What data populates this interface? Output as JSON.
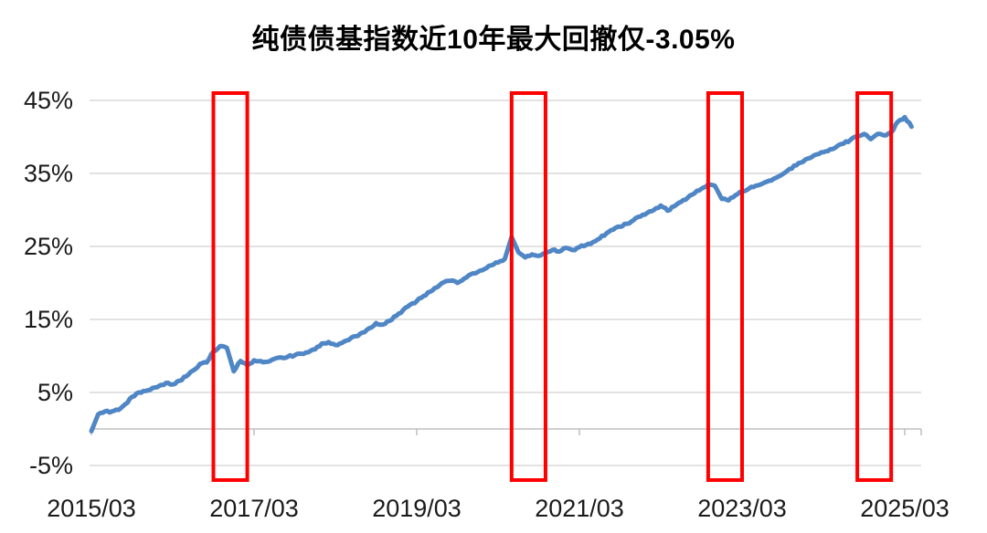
{
  "chart_data": {
    "type": "line",
    "title": "纯债债基指数近10年最大回撤仅-3.05%",
    "xlabel": "",
    "ylabel": "",
    "ylim": [
      -5,
      45
    ],
    "y_tick_values": [
      45,
      35,
      25,
      15,
      5,
      -5
    ],
    "y_tick_labels": [
      "45%",
      "35%",
      "25%",
      "15%",
      "5%",
      "-5%"
    ],
    "x_tick_labels": [
      "2015/03",
      "2017/03",
      "2019/03",
      "2021/03",
      "2023/03",
      "2025/03"
    ],
    "grid": "horizontal",
    "legend": "none",
    "zero_axis_value": 0,
    "series": [
      {
        "name": "pure-bond-fund-index-cumulative-return",
        "dates": [
          "2015/03",
          "2015/04",
          "2015/05",
          "2015/06",
          "2015/07",
          "2015/08",
          "2015/09",
          "2015/10",
          "2015/11",
          "2015/12",
          "2016/01",
          "2016/02",
          "2016/03",
          "2016/04",
          "2016/05",
          "2016/06",
          "2016/07",
          "2016/08",
          "2016/09",
          "2016/10",
          "2016/11",
          "2016/12",
          "2017/01",
          "2017/02",
          "2017/03",
          "2017/04",
          "2017/05",
          "2017/06",
          "2017/07",
          "2017/08",
          "2017/09",
          "2017/10",
          "2017/11",
          "2017/12",
          "2018/01",
          "2018/02",
          "2018/03",
          "2018/04",
          "2018/05",
          "2018/06",
          "2018/07",
          "2018/08",
          "2018/09",
          "2018/10",
          "2018/11",
          "2018/12",
          "2019/01",
          "2019/02",
          "2019/03",
          "2019/04",
          "2019/05",
          "2019/06",
          "2019/07",
          "2019/08",
          "2019/09",
          "2019/10",
          "2019/11",
          "2019/12",
          "2020/01",
          "2020/02",
          "2020/03",
          "2020/04",
          "2020/05",
          "2020/06",
          "2020/07",
          "2020/08",
          "2020/09",
          "2020/10",
          "2020/11",
          "2020/12",
          "2021/01",
          "2021/02",
          "2021/03",
          "2021/04",
          "2021/05",
          "2021/06",
          "2021/07",
          "2021/08",
          "2021/09",
          "2021/10",
          "2021/11",
          "2021/12",
          "2022/01",
          "2022/02",
          "2022/03",
          "2022/04",
          "2022/05",
          "2022/06",
          "2022/07",
          "2022/08",
          "2022/09",
          "2022/10",
          "2022/11",
          "2022/12",
          "2023/01",
          "2023/02",
          "2023/03",
          "2023/04",
          "2023/05",
          "2023/06",
          "2023/07",
          "2023/08",
          "2023/09",
          "2023/10",
          "2023/11",
          "2023/12",
          "2024/01",
          "2024/02",
          "2024/03",
          "2024/04",
          "2024/05",
          "2024/06",
          "2024/07",
          "2024/08",
          "2024/09",
          "2024/10",
          "2024/11",
          "2024/12",
          "2025/01",
          "2025/02",
          "2025/03",
          "2025/04"
        ],
        "values": [
          -0.3,
          2.0,
          2.4,
          2.4,
          2.6,
          3.4,
          4.4,
          5.0,
          5.2,
          5.6,
          5.9,
          6.3,
          6.1,
          6.6,
          7.2,
          8.0,
          8.9,
          9.1,
          10.6,
          11.35,
          11.1,
          7.9,
          9.3,
          8.7,
          9.4,
          9.3,
          9.2,
          9.6,
          9.8,
          9.9,
          10.1,
          10.3,
          10.5,
          10.9,
          11.7,
          11.9,
          11.5,
          11.8,
          12.2,
          12.7,
          13.2,
          13.8,
          14.5,
          14.3,
          14.8,
          15.5,
          16.3,
          17.0,
          17.5,
          18.2,
          18.8,
          19.4,
          20.1,
          20.3,
          20.0,
          20.6,
          21.2,
          21.5,
          21.9,
          22.4,
          22.8,
          23.3,
          26.3,
          24.2,
          23.5,
          23.9,
          23.7,
          24.1,
          24.5,
          24.3,
          24.8,
          24.5,
          24.9,
          25.2,
          25.6,
          26.1,
          26.8,
          27.3,
          27.7,
          28.1,
          28.6,
          29.1,
          29.6,
          30.0,
          30.6,
          29.9,
          30.5,
          31.1,
          31.7,
          32.3,
          32.9,
          33.5,
          33.3,
          31.5,
          31.3,
          32.0,
          32.5,
          32.9,
          33.3,
          33.6,
          34.0,
          34.4,
          34.9,
          35.6,
          36.1,
          36.6,
          37.1,
          37.6,
          37.9,
          38.3,
          38.7,
          39.1,
          39.6,
          40.1,
          40.4,
          39.7,
          40.4,
          40.2,
          40.6,
          42.1,
          42.7,
          41.4
        ]
      }
    ],
    "annotations": {
      "max_drawdown_label": "-3.05%",
      "highlight_ranges": [
        {
          "from": "2016/09",
          "to": "2017/02"
        },
        {
          "from": "2020/05",
          "to": "2020/10"
        },
        {
          "from": "2022/10",
          "to": "2023/03"
        },
        {
          "from": "2024/08",
          "to": "2025/01"
        }
      ]
    },
    "colors": {
      "line": "#4F86C5",
      "highlight_box": "#FF0000",
      "gridline": "#D9D9D9",
      "axis": "#BFBFBF",
      "tick_text": "#1A1A1A",
      "title_text": "#000000",
      "background": "#FFFFFF"
    }
  }
}
